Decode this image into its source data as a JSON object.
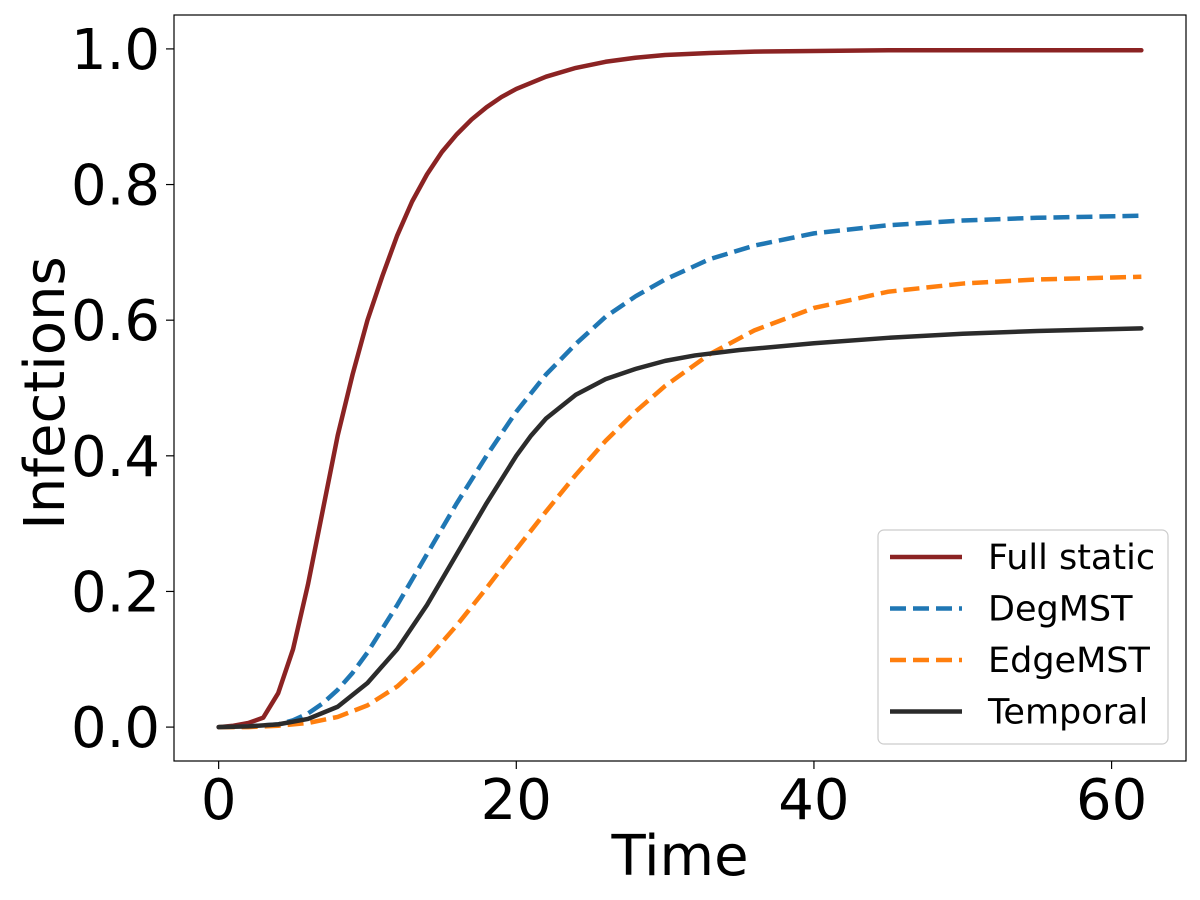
{
  "chart_data": {
    "type": "line",
    "title": "",
    "xlabel": "Time",
    "ylabel": "Infections",
    "xlim": [
      -3,
      65
    ],
    "ylim": [
      -0.05,
      1.05
    ],
    "xticks": [
      0,
      20,
      40,
      60
    ],
    "xtick_labels": [
      "0",
      "20",
      "40",
      "60"
    ],
    "yticks": [
      0.0,
      0.2,
      0.4,
      0.6,
      0.8,
      1.0
    ],
    "ytick_labels": [
      "0.0",
      "0.2",
      "0.4",
      "0.6",
      "0.8",
      "1.0"
    ],
    "grid": false,
    "legend_position": "bottom-right",
    "series": [
      {
        "name": "Full static",
        "color": "#8b2323",
        "dash": "solid",
        "x": [
          0,
          1,
          2,
          3,
          4,
          5,
          6,
          7,
          8,
          9,
          10,
          11,
          12,
          13,
          14,
          15,
          16,
          17,
          18,
          19,
          20,
          22,
          24,
          26,
          28,
          30,
          33,
          36,
          40,
          45,
          50,
          55,
          62
        ],
        "y": [
          0.0,
          0.002,
          0.006,
          0.014,
          0.05,
          0.115,
          0.21,
          0.32,
          0.43,
          0.52,
          0.6,
          0.665,
          0.725,
          0.775,
          0.815,
          0.848,
          0.874,
          0.896,
          0.914,
          0.929,
          0.941,
          0.959,
          0.972,
          0.981,
          0.987,
          0.991,
          0.994,
          0.996,
          0.997,
          0.998,
          0.998,
          0.998,
          0.998
        ]
      },
      {
        "name": "DegMST",
        "color": "#1f77b4",
        "dash": "dashed",
        "x": [
          0,
          2,
          4,
          5,
          6,
          7,
          8,
          9,
          10,
          12,
          14,
          16,
          18,
          20,
          22,
          24,
          26,
          28,
          30,
          33,
          36,
          40,
          45,
          50,
          55,
          62
        ],
        "y": [
          0.0,
          0.001,
          0.004,
          0.01,
          0.02,
          0.035,
          0.055,
          0.08,
          0.11,
          0.18,
          0.255,
          0.33,
          0.4,
          0.465,
          0.52,
          0.565,
          0.605,
          0.635,
          0.66,
          0.69,
          0.71,
          0.728,
          0.74,
          0.747,
          0.751,
          0.754
        ]
      },
      {
        "name": "EdgeMST",
        "color": "#ff7f0e",
        "dash": "dashed",
        "x": [
          0,
          2,
          4,
          6,
          8,
          10,
          12,
          14,
          16,
          18,
          20,
          22,
          24,
          26,
          28,
          30,
          33,
          36,
          40,
          45,
          50,
          55,
          62
        ],
        "y": [
          0.0,
          0.0,
          0.002,
          0.006,
          0.015,
          0.032,
          0.06,
          0.1,
          0.15,
          0.205,
          0.262,
          0.318,
          0.372,
          0.422,
          0.465,
          0.503,
          0.55,
          0.585,
          0.618,
          0.642,
          0.654,
          0.66,
          0.664
        ]
      },
      {
        "name": "Temporal",
        "color": "#2b2b2b",
        "dash": "solid",
        "x": [
          0,
          2,
          4,
          6,
          8,
          10,
          12,
          14,
          16,
          18,
          20,
          21,
          22,
          24,
          26,
          28,
          30,
          32,
          35,
          40,
          45,
          50,
          55,
          62
        ],
        "y": [
          0.0,
          0.001,
          0.004,
          0.012,
          0.03,
          0.065,
          0.115,
          0.18,
          0.255,
          0.33,
          0.4,
          0.43,
          0.455,
          0.49,
          0.513,
          0.528,
          0.54,
          0.548,
          0.556,
          0.566,
          0.574,
          0.58,
          0.584,
          0.588
        ]
      }
    ]
  }
}
